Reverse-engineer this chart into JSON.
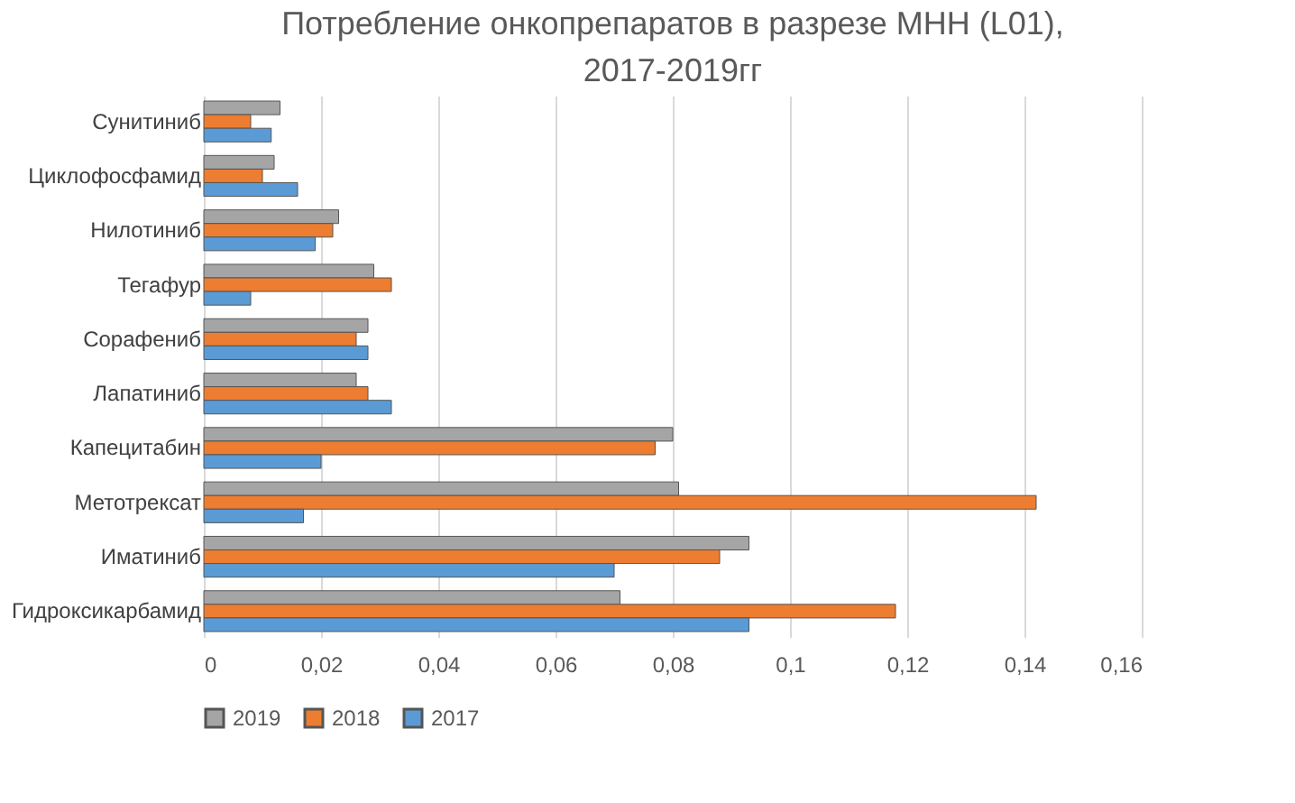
{
  "chart_data": {
    "type": "bar",
    "orientation": "horizontal",
    "title": "Потребление онкопрепаратов в разрезе МНН (L01), 2017-2019гг",
    "categories": [
      "Сунитиниб",
      "Циклофосфамид",
      "Нилотиниб",
      "Тегафур",
      "Сорафениб",
      "Лапатиниб",
      "Капецитабин",
      "Метотрексат",
      "Иматиниб",
      "Гидроксикарбамид"
    ],
    "series": [
      {
        "name": "2019",
        "color": "#a5a5a5",
        "values": [
          0.013,
          0.012,
          0.023,
          0.029,
          0.028,
          0.026,
          0.08,
          0.081,
          0.093,
          0.071
        ]
      },
      {
        "name": "2018",
        "color": "#ed7d31",
        "values": [
          0.008,
          0.01,
          0.022,
          0.032,
          0.026,
          0.028,
          0.077,
          0.142,
          0.088,
          0.118
        ]
      },
      {
        "name": "2017",
        "color": "#5b9bd5",
        "values": [
          0.0115,
          0.016,
          0.019,
          0.008,
          0.028,
          0.032,
          0.02,
          0.017,
          0.07,
          0.093
        ]
      }
    ],
    "xlim": [
      0,
      0.16
    ],
    "xticks": [
      {
        "value": 0,
        "label": "0"
      },
      {
        "value": 0.02,
        "label": "0,02"
      },
      {
        "value": 0.04,
        "label": "0,04"
      },
      {
        "value": 0.06,
        "label": "0,06"
      },
      {
        "value": 0.08,
        "label": "0,08"
      },
      {
        "value": 0.1,
        "label": "0,1"
      },
      {
        "value": 0.12,
        "label": "0,12"
      },
      {
        "value": 0.14,
        "label": "0,14"
      },
      {
        "value": 0.16,
        "label": "0,16"
      }
    ],
    "grid": "x",
    "legend": "bottom"
  }
}
